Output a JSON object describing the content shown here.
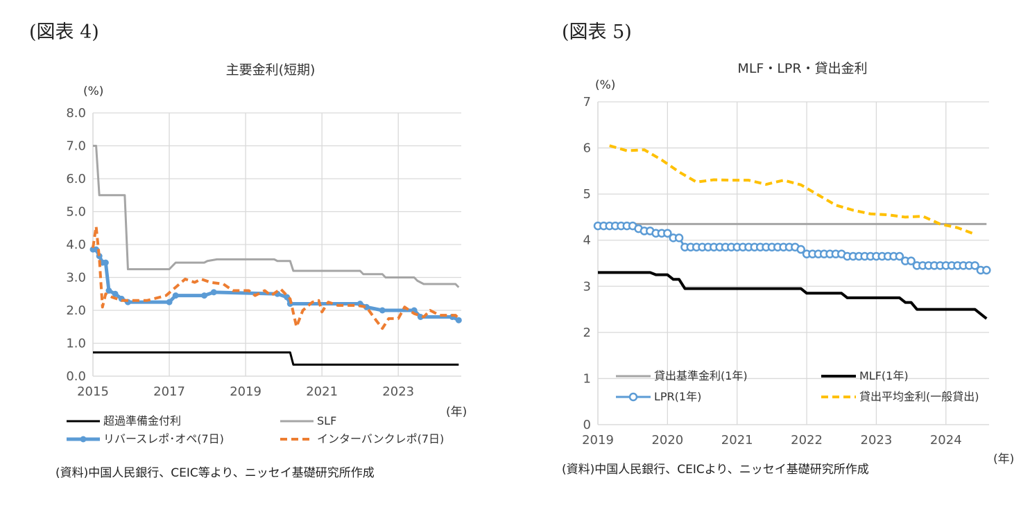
{
  "chart_data": [
    {
      "type": "line",
      "figure_label": "(図表 4)",
      "title": "主要金利(短期)",
      "ylabel": "(%)",
      "xlabel": "(年)",
      "ylim": [
        0,
        8
      ],
      "yticks": [
        "0.0",
        "1.0",
        "2.0",
        "3.0",
        "4.0",
        "5.0",
        "6.0",
        "7.0",
        "8.0"
      ],
      "xlim": [
        "2015-01",
        "2024-08"
      ],
      "xticks": [
        "2015",
        "2017",
        "2019",
        "2021",
        "2023"
      ],
      "grid": true,
      "legend": "bottom",
      "source": "(資料)中国人民銀行、CEIC等より、ニッセイ基礎研究所作成",
      "series": [
        {
          "name": "超過準備金付利",
          "color": "#000000",
          "style": "solid",
          "points": [
            [
              "2015-01",
              0.72
            ],
            [
              "2020-03",
              0.72
            ],
            [
              "2020-04",
              0.35
            ],
            [
              "2024-08",
              0.35
            ]
          ]
        },
        {
          "name": "SLF",
          "color": "#a5a5a5",
          "style": "solid",
          "points": [
            [
              "2015-01",
              7.0
            ],
            [
              "2015-02",
              7.0
            ],
            [
              "2015-03",
              5.5
            ],
            [
              "2015-11",
              5.5
            ],
            [
              "2015-12",
              3.25
            ],
            [
              "2017-01",
              3.25
            ],
            [
              "2017-03",
              3.45
            ],
            [
              "2017-12",
              3.45
            ],
            [
              "2018-01",
              3.5
            ],
            [
              "2018-04",
              3.55
            ],
            [
              "2019-10",
              3.55
            ],
            [
              "2019-11",
              3.5
            ],
            [
              "2020-03",
              3.5
            ],
            [
              "2020-04",
              3.2
            ],
            [
              "2022-01",
              3.2
            ],
            [
              "2022-02",
              3.1
            ],
            [
              "2022-08",
              3.1
            ],
            [
              "2022-09",
              3.0
            ],
            [
              "2023-06",
              3.0
            ],
            [
              "2023-07",
              2.9
            ],
            [
              "2023-09",
              2.8
            ],
            [
              "2024-07",
              2.8
            ],
            [
              "2024-08",
              2.7
            ]
          ]
        },
        {
          "name": "リバースレポ･オペ(7日)",
          "color": "#5b9bd5",
          "style": "marker",
          "points": [
            [
              "2015-01",
              3.85
            ],
            [
              "2015-02",
              3.85
            ],
            [
              "2015-03",
              3.65
            ],
            [
              "2015-04",
              3.45
            ],
            [
              "2015-05",
              3.45
            ],
            [
              "2015-06",
              2.6
            ],
            [
              "2015-08",
              2.5
            ],
            [
              "2015-10",
              2.35
            ],
            [
              "2015-12",
              2.25
            ],
            [
              "2017-01",
              2.25
            ],
            [
              "2017-03",
              2.45
            ],
            [
              "2017-12",
              2.45
            ],
            [
              "2018-03",
              2.55
            ],
            [
              "2019-11",
              2.5
            ],
            [
              "2020-02",
              2.4
            ],
            [
              "2020-03",
              2.2
            ],
            [
              "2022-01",
              2.2
            ],
            [
              "2022-03",
              2.1
            ],
            [
              "2022-08",
              2.0
            ],
            [
              "2023-06",
              2.0
            ],
            [
              "2023-08",
              1.8
            ],
            [
              "2024-06",
              1.8
            ],
            [
              "2024-08",
              1.7
            ]
          ]
        },
        {
          "name": "インターバンクレポ(7日)",
          "color": "#ed7d31",
          "style": "dashed",
          "points": [
            [
              "2015-01",
              3.9
            ],
            [
              "2015-02",
              4.55
            ],
            [
              "2015-03",
              3.6
            ],
            [
              "2015-04",
              2.1
            ],
            [
              "2015-05",
              2.5
            ],
            [
              "2015-07",
              2.4
            ],
            [
              "2015-10",
              2.3
            ],
            [
              "2016-06",
              2.3
            ],
            [
              "2016-12",
              2.45
            ],
            [
              "2017-03",
              2.7
            ],
            [
              "2017-06",
              2.95
            ],
            [
              "2017-09",
              2.85
            ],
            [
              "2017-11",
              2.95
            ],
            [
              "2018-02",
              2.85
            ],
            [
              "2018-06",
              2.8
            ],
            [
              "2018-09",
              2.6
            ],
            [
              "2019-02",
              2.6
            ],
            [
              "2019-04",
              2.45
            ],
            [
              "2019-07",
              2.6
            ],
            [
              "2019-09",
              2.45
            ],
            [
              "2019-12",
              2.65
            ],
            [
              "2020-03",
              2.35
            ],
            [
              "2020-05",
              1.5
            ],
            [
              "2020-07",
              2.0
            ],
            [
              "2020-10",
              2.25
            ],
            [
              "2020-12",
              2.3
            ],
            [
              "2021-01",
              1.95
            ],
            [
              "2021-03",
              2.25
            ],
            [
              "2021-06",
              2.15
            ],
            [
              "2021-12",
              2.15
            ],
            [
              "2022-03",
              2.1
            ],
            [
              "2022-06",
              1.7
            ],
            [
              "2022-08",
              1.45
            ],
            [
              "2022-10",
              1.75
            ],
            [
              "2023-01",
              1.75
            ],
            [
              "2023-03",
              2.1
            ],
            [
              "2023-06",
              1.9
            ],
            [
              "2023-09",
              1.8
            ],
            [
              "2023-11",
              2.0
            ],
            [
              "2024-02",
              1.85
            ],
            [
              "2024-07",
              1.85
            ],
            [
              "2024-08",
              1.75
            ]
          ]
        }
      ]
    },
    {
      "type": "line",
      "figure_label": "(図表 5)",
      "title": "MLF・LPR・貸出金利",
      "ylabel": "(%)",
      "xlabel": "(年)",
      "ylim": [
        0,
        7
      ],
      "yticks": [
        "0",
        "1",
        "2",
        "3",
        "4",
        "5",
        "6",
        "7"
      ],
      "xlim": [
        "2019-01",
        "2024-08"
      ],
      "xticks": [
        "2019",
        "2020",
        "2021",
        "2022",
        "2023",
        "2024"
      ],
      "grid": true,
      "legend": "bottom-inside",
      "source": "(資料)中国人民銀行、CEICより、ニッセイ基礎研究所作成",
      "series": [
        {
          "name": "貸出基準金利(1年)",
          "color": "#a5a5a5",
          "style": "solid",
          "points": [
            [
              "2019-01",
              4.35
            ],
            [
              "2024-08",
              4.35
            ]
          ]
        },
        {
          "name": "MLF(1年)",
          "color": "#000000",
          "style": "solid",
          "points": [
            [
              "2019-01",
              3.3
            ],
            [
              "2019-10",
              3.3
            ],
            [
              "2019-11",
              3.25
            ],
            [
              "2020-01",
              3.25
            ],
            [
              "2020-02",
              3.15
            ],
            [
              "2020-03",
              3.15
            ],
            [
              "2020-04",
              2.95
            ],
            [
              "2021-12",
              2.95
            ],
            [
              "2022-01",
              2.85
            ],
            [
              "2022-07",
              2.85
            ],
            [
              "2022-08",
              2.75
            ],
            [
              "2023-05",
              2.75
            ],
            [
              "2023-06",
              2.65
            ],
            [
              "2023-07",
              2.65
            ],
            [
              "2023-08",
              2.5
            ],
            [
              "2024-06",
              2.5
            ],
            [
              "2024-08",
              2.3
            ]
          ]
        },
        {
          "name": "LPR(1年)",
          "color": "#5b9bd5",
          "style": "open-marker",
          "monthly_steps": [
            [
              "2019-01",
              "2019-07",
              4.31
            ],
            [
              "2019-08",
              "2019-08",
              4.25
            ],
            [
              "2019-09",
              "2019-10",
              4.2
            ],
            [
              "2019-11",
              "2020-01",
              4.15
            ],
            [
              "2020-02",
              "2020-03",
              4.05
            ],
            [
              "2020-04",
              "2021-11",
              3.85
            ],
            [
              "2021-12",
              "2021-12",
              3.8
            ],
            [
              "2022-01",
              "2022-07",
              3.7
            ],
            [
              "2022-08",
              "2023-05",
              3.65
            ],
            [
              "2023-06",
              "2023-07",
              3.55
            ],
            [
              "2023-08",
              "2024-06",
              3.45
            ],
            [
              "2024-07",
              "2024-08",
              3.35
            ]
          ]
        },
        {
          "name": "貸出平均金利(一般貸出)",
          "color": "#ffc000",
          "style": "dashed",
          "points": [
            [
              "2019-03",
              6.05
            ],
            [
              "2019-06",
              5.94
            ],
            [
              "2019-09",
              5.96
            ],
            [
              "2019-12",
              5.74
            ],
            [
              "2020-03",
              5.48
            ],
            [
              "2020-06",
              5.26
            ],
            [
              "2020-09",
              5.31
            ],
            [
              "2020-12",
              5.3
            ],
            [
              "2021-03",
              5.3
            ],
            [
              "2021-06",
              5.21
            ],
            [
              "2021-09",
              5.3
            ],
            [
              "2021-12",
              5.2
            ],
            [
              "2022-03",
              4.98
            ],
            [
              "2022-06",
              4.76
            ],
            [
              "2022-09",
              4.65
            ],
            [
              "2022-12",
              4.57
            ],
            [
              "2023-03",
              4.55
            ],
            [
              "2023-06",
              4.5
            ],
            [
              "2023-09",
              4.52
            ],
            [
              "2023-12",
              4.35
            ],
            [
              "2024-03",
              4.27
            ],
            [
              "2024-06",
              4.13
            ]
          ]
        }
      ]
    }
  ]
}
